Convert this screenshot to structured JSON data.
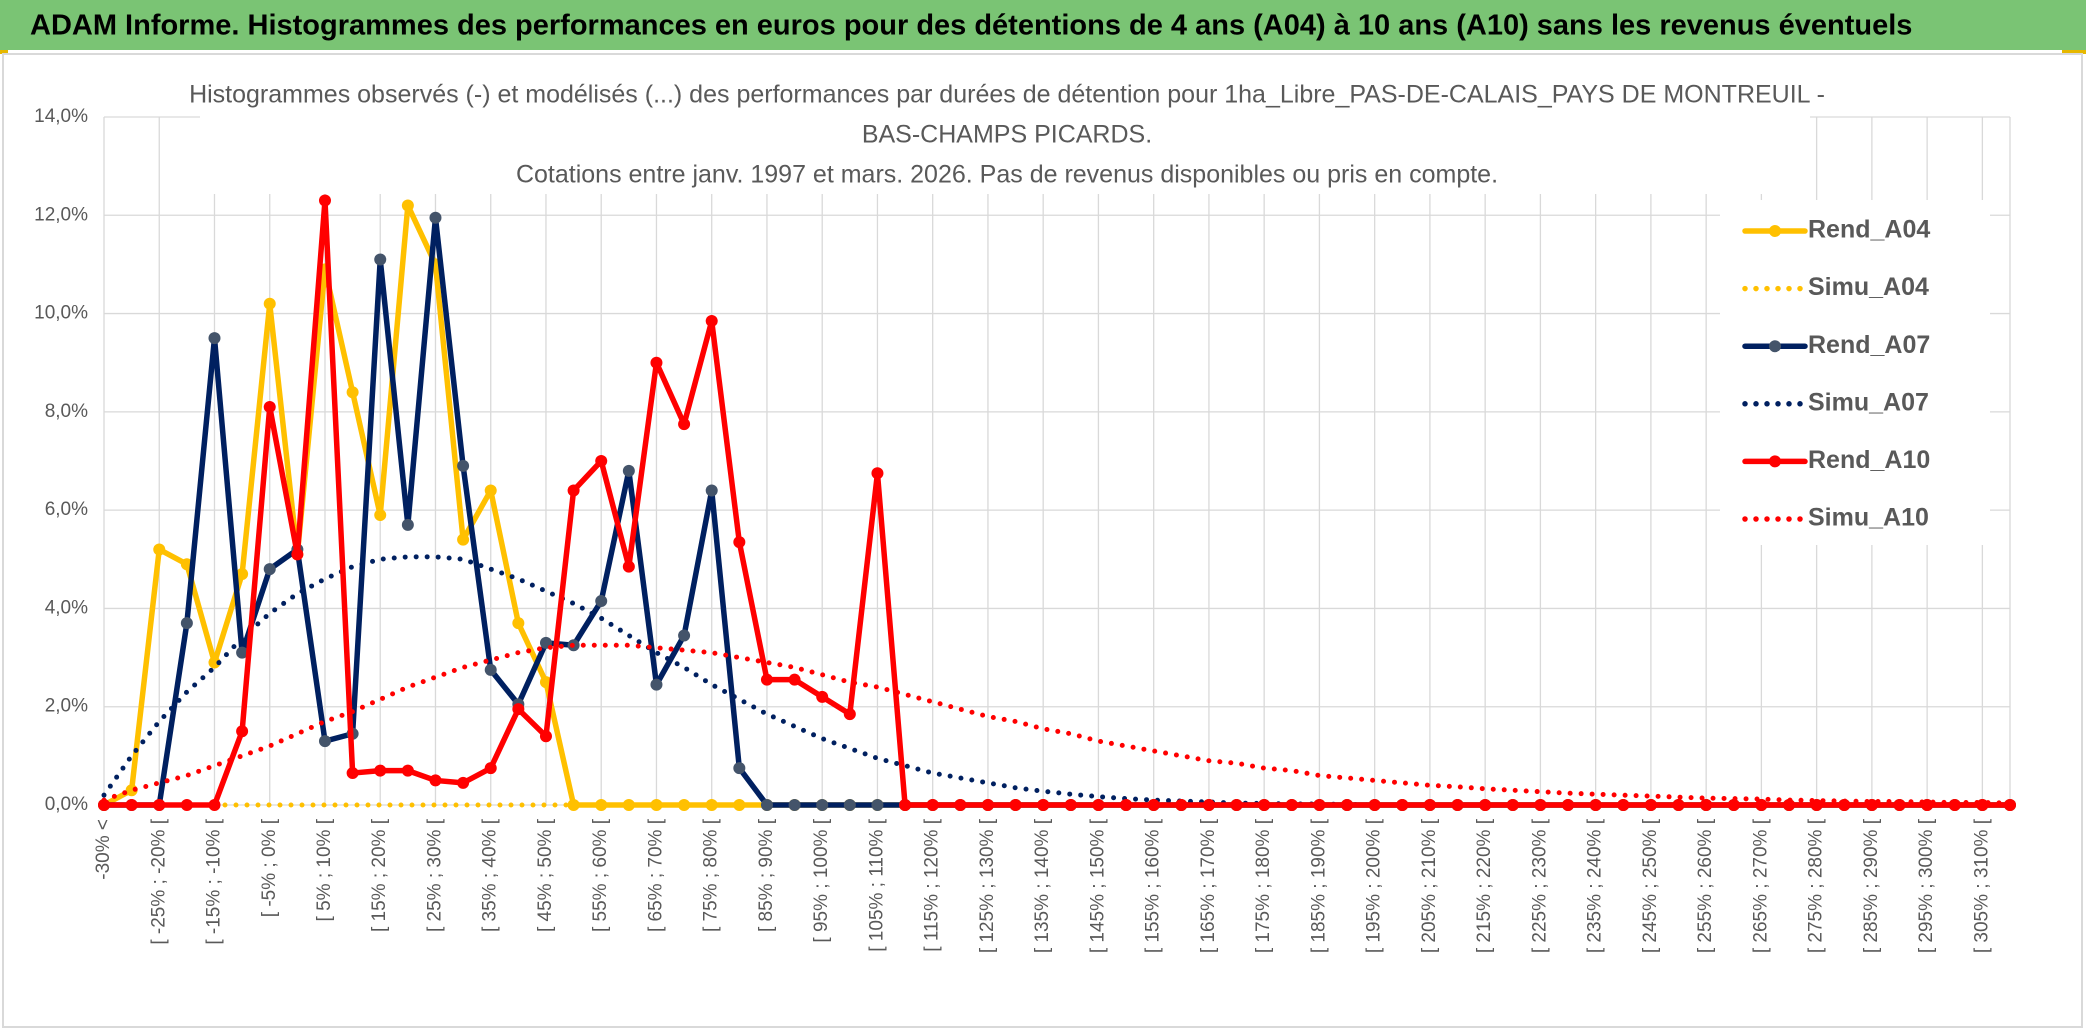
{
  "header": {
    "title": "ADAM Informe. Histogrammes des performances en euros pour des détentions de 4 ans (A04) à 10 ans (A10) sans les revenus éventuels"
  },
  "chart_data": {
    "type": "line",
    "title": [
      "Histogrammes observés (-) et modélisés (...) des performances par durées de détention pour 1ha_Libre_PAS-DE-CALAIS_PAYS DE MONTREUIL -",
      "BAS-CHAMPS PICARDS.",
      "Cotations entre janv. 1997 et mars. 2026. Pas de revenus disponibles ou pris en compte."
    ],
    "categories": [
      "-30% <",
      null,
      "[ -25% ; -20% [",
      null,
      "[ -15% ; -10% [",
      null,
      "[ -5% ; 0% [",
      null,
      "[ 5% ; 10% [",
      null,
      "[ 15% ; 20% [",
      null,
      "[ 25% ; 30% [",
      null,
      "[ 35% ; 40% [",
      null,
      "[ 45% ; 50% [",
      null,
      "[ 55% ; 60% [",
      null,
      "[ 65% ; 70% [",
      null,
      "[ 75% ; 80% [",
      null,
      "[ 85% ; 90% [",
      null,
      "[ 95% ; 100% [",
      null,
      "[ 105% ; 110% [",
      null,
      "[ 115% ; 120% [",
      null,
      "[ 125% ; 130% [",
      null,
      "[ 135% ; 140% [",
      null,
      "[ 145% ; 150% [",
      null,
      "[ 155% ; 160% [",
      null,
      "[ 165% ; 170% [",
      null,
      "[ 175% ; 180% [",
      null,
      "[ 185% ; 190% [",
      null,
      "[ 195% ; 200% [",
      null,
      "[ 205% ; 210% [",
      null,
      "[ 215% ; 220% [",
      null,
      "[ 225% ; 230% [",
      null,
      "[ 235% ; 240% [",
      null,
      "[ 245% ; 250% [",
      null,
      "[ 255% ; 260% [",
      null,
      "[ 265% ; 270% [",
      null,
      "[ 275% ; 280% [",
      null,
      "[ 285% ; 290% [",
      null,
      "[ 295% ; 300% [",
      null,
      "[ 305% ; 310% [",
      null
    ],
    "ylim": [
      0,
      14
    ],
    "yticks": [
      {
        "value": 0,
        "label": "0,0%"
      },
      {
        "value": 2,
        "label": "2,0%"
      },
      {
        "value": 4,
        "label": "4,0%"
      },
      {
        "value": 6,
        "label": "6,0%"
      },
      {
        "value": 8,
        "label": "8,0%"
      },
      {
        "value": 10,
        "label": "10,0%"
      },
      {
        "value": 12,
        "label": "12,0%"
      },
      {
        "value": 14,
        "label": "14,0%"
      }
    ],
    "grid": true,
    "legend": "right",
    "series": [
      {
        "name": "Rend_A04",
        "color": "#ffc000",
        "line_style": "solid",
        "markers": true,
        "marker_color": "#ffc000",
        "values": [
          0,
          0.3,
          5.2,
          4.9,
          2.9,
          4.7,
          10.2,
          5.1,
          10.9,
          8.4,
          5.9,
          12.2,
          11.0,
          5.4,
          6.4,
          3.7,
          2.5,
          0,
          0,
          0,
          0,
          0,
          0,
          0,
          0,
          0,
          0,
          0,
          0,
          0,
          0,
          0,
          0,
          0,
          0,
          0,
          0,
          0,
          0,
          0,
          0,
          0,
          0,
          0,
          0,
          0,
          0,
          0,
          0,
          0,
          0,
          0,
          0,
          0,
          0,
          0,
          0,
          0,
          0,
          0,
          0,
          0,
          0,
          0,
          0,
          0,
          0,
          0,
          0,
          0
        ]
      },
      {
        "name": "Simu_A04",
        "color": "#ffc000",
        "line_style": "dotted",
        "markers": false,
        "values": [
          0,
          0,
          0,
          0,
          0,
          0,
          0,
          0,
          0,
          0,
          0,
          0,
          0,
          0,
          0,
          0,
          0,
          0,
          0,
          0,
          0,
          0,
          0,
          0,
          0,
          0,
          0,
          0,
          0,
          0,
          0,
          0,
          0,
          0,
          0,
          0,
          0,
          0,
          0,
          0,
          0,
          0,
          0,
          0,
          0,
          0,
          0,
          0,
          0,
          0,
          0,
          0,
          0,
          0,
          0,
          0,
          0,
          0,
          0,
          0,
          0,
          0,
          0,
          0,
          0,
          0,
          0,
          0,
          0,
          0
        ]
      },
      {
        "name": "Rend_A07",
        "color": "#002060",
        "line_style": "solid",
        "markers": true,
        "marker_color": "#44546a",
        "values": [
          0,
          0,
          0,
          3.7,
          9.5,
          3.1,
          4.8,
          5.2,
          1.3,
          1.45,
          11.1,
          5.7,
          11.95,
          6.9,
          2.75,
          2.05,
          3.3,
          3.25,
          4.15,
          6.8,
          2.45,
          3.45,
          6.4,
          0.75,
          0,
          0,
          0,
          0,
          0,
          0,
          0,
          0,
          0,
          0,
          0,
          0,
          0,
          0,
          0,
          0,
          0,
          0,
          0,
          0,
          0,
          0,
          0,
          0,
          0,
          0,
          0,
          0,
          0,
          0,
          0,
          0,
          0,
          0,
          0,
          0,
          0,
          0,
          0,
          0,
          0,
          0,
          0,
          0,
          0,
          0
        ]
      },
      {
        "name": "Simu_A07",
        "color": "#002060",
        "line_style": "dotted",
        "markers": false,
        "values": [
          0.2,
          1.0,
          1.7,
          2.3,
          2.8,
          3.4,
          3.9,
          4.3,
          4.6,
          4.85,
          5.0,
          5.05,
          5.05,
          5.0,
          4.8,
          4.6,
          4.35,
          4.1,
          3.8,
          3.45,
          3.1,
          2.8,
          2.45,
          2.15,
          1.85,
          1.6,
          1.35,
          1.15,
          0.95,
          0.8,
          0.65,
          0.55,
          0.45,
          0.35,
          0.28,
          0.22,
          0.17,
          0.13,
          0.1,
          0.08,
          0.06,
          0.04,
          0.03,
          0.02,
          0.02,
          0.01,
          0,
          0,
          0,
          0,
          0,
          0,
          0,
          0,
          0,
          0,
          0,
          0,
          0,
          0,
          0,
          0,
          0,
          0,
          0,
          0,
          0,
          0,
          0,
          0
        ]
      },
      {
        "name": "Rend_A10",
        "color": "#ff0000",
        "line_style": "solid",
        "markers": true,
        "marker_color": "#ff0000",
        "values": [
          0,
          0,
          0,
          0,
          0,
          1.5,
          8.1,
          5.1,
          12.3,
          0.65,
          0.7,
          0.7,
          0.5,
          0.45,
          0.75,
          1.95,
          1.4,
          6.4,
          7.0,
          4.85,
          9.0,
          7.75,
          9.85,
          5.35,
          2.55,
          2.55,
          2.2,
          1.85,
          6.75,
          0,
          0,
          0,
          0,
          0,
          0,
          0,
          0,
          0,
          0,
          0,
          0,
          0,
          0,
          0,
          0,
          0,
          0,
          0,
          0,
          0,
          0,
          0,
          0,
          0,
          0,
          0,
          0,
          0,
          0,
          0,
          0,
          0,
          0,
          0,
          0,
          0,
          0,
          0,
          0,
          0
        ]
      },
      {
        "name": "Simu_A10",
        "color": "#ff0000",
        "line_style": "dotted",
        "markers": false,
        "values": [
          0.1,
          0.3,
          0.45,
          0.6,
          0.8,
          1.0,
          1.2,
          1.45,
          1.7,
          1.9,
          2.15,
          2.4,
          2.6,
          2.8,
          2.95,
          3.1,
          3.2,
          3.25,
          3.25,
          3.25,
          3.2,
          3.15,
          3.1,
          3.0,
          2.9,
          2.8,
          2.65,
          2.5,
          2.4,
          2.25,
          2.1,
          1.95,
          1.8,
          1.7,
          1.55,
          1.45,
          1.3,
          1.2,
          1.1,
          1.0,
          0.9,
          0.85,
          0.75,
          0.7,
          0.6,
          0.55,
          0.5,
          0.45,
          0.4,
          0.37,
          0.33,
          0.3,
          0.27,
          0.24,
          0.22,
          0.2,
          0.18,
          0.16,
          0.14,
          0.13,
          0.12,
          0.1,
          0.09,
          0.08,
          0.07,
          0.07,
          0.06,
          0.05,
          0.05,
          0.04
        ]
      }
    ]
  }
}
